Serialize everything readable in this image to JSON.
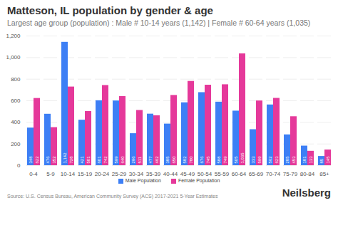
{
  "chart_data": {
    "type": "bar",
    "title": "Matteson, IL population by gender & age",
    "subtitle": "Largest age group (population) : Male # 10-14 years (1,142) | Female # 60-64 years (1,035)",
    "source": "Source: U.S. Census Bureau, American Community Survey (ACS) 2017-2021 5-Year Estimates",
    "brand": "Neilsberg",
    "categories": [
      "0-4",
      "5-9",
      "10-14",
      "15-19",
      "20-24",
      "25-29",
      "30-34",
      "35-39",
      "40-44",
      "45-49",
      "50-54",
      "55-59",
      "60-64",
      "65-69",
      "70-74",
      "75-79",
      "80-84",
      "85+"
    ],
    "series": [
      {
        "name": "Male Population",
        "color": "#3d7ff5",
        "values": [
          348,
          476,
          1142,
          421,
          601,
          599,
          296,
          477,
          385,
          582,
          676,
          588,
          505,
          333,
          562,
          285,
          181,
          85
        ],
        "value_labels": [
          "348",
          "476",
          "1,142",
          "421",
          "601",
          "599",
          "296",
          "477",
          "385",
          "582",
          "676",
          "588",
          "505",
          "333",
          "562",
          "285",
          "181",
          "85"
        ]
      },
      {
        "name": "Female Population",
        "color": "#e5399a",
        "values": [
          622,
          352,
          728,
          501,
          742,
          640,
          511,
          462,
          650,
          780,
          745,
          749,
          1035,
          599,
          623,
          453,
          133,
          145
        ],
        "value_labels": [
          "622",
          "352",
          "728",
          "501",
          "742",
          "640",
          "511",
          "462",
          "650",
          "780",
          "745",
          "749",
          "1,035",
          "599",
          "623",
          "453",
          "133",
          "145"
        ]
      }
    ],
    "ylim": [
      0,
      1200
    ],
    "yticks": [
      0,
      200,
      400,
      600,
      800,
      1000,
      1200
    ],
    "grid": true,
    "data_labels": true,
    "legend": "bottom"
  }
}
